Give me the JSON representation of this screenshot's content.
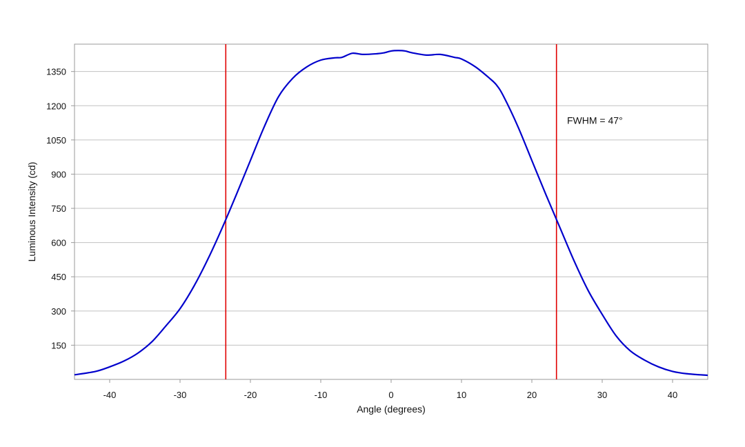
{
  "chart_data": {
    "type": "line",
    "title": "",
    "xlabel": "Angle (degrees)",
    "ylabel": "Luminous Intensity (cd)",
    "xlim": [
      -45,
      45
    ],
    "ylim": [
      0,
      1470
    ],
    "x_ticks": [
      -40,
      -30,
      -20,
      -10,
      0,
      10,
      20,
      30,
      40
    ],
    "y_ticks": [
      150,
      300,
      450,
      600,
      750,
      900,
      1050,
      1200,
      1350
    ],
    "grid": "horizontal",
    "series": [
      {
        "color": "#0000cc",
        "x": [
          -45,
          -42,
          -40,
          -38,
          -36,
          -34,
          -32,
          -30,
          -28,
          -26,
          -24,
          -22,
          -20,
          -18,
          -16,
          -14,
          -12,
          -10,
          -8,
          -7,
          -5.5,
          -4,
          -2,
          -1,
          0,
          1,
          2,
          3,
          5,
          7,
          9,
          10,
          12,
          14,
          15,
          16,
          18,
          20,
          22,
          24,
          26,
          28,
          30,
          32,
          34,
          36,
          38,
          40,
          42,
          45
        ],
        "y": [
          20,
          35,
          55,
          80,
          115,
          165,
          235,
          310,
          410,
          530,
          665,
          810,
          960,
          1110,
          1240,
          1320,
          1370,
          1400,
          1410,
          1412,
          1430,
          1425,
          1428,
          1432,
          1440,
          1442,
          1440,
          1432,
          1422,
          1425,
          1412,
          1405,
          1370,
          1320,
          1290,
          1240,
          1110,
          960,
          810,
          665,
          520,
          390,
          285,
          190,
          125,
          85,
          55,
          35,
          25,
          18
        ]
      }
    ],
    "vlines": [
      {
        "x": -23.5,
        "color": "#e00000"
      },
      {
        "x": 23.5,
        "color": "#e00000"
      }
    ],
    "annotations": [
      {
        "text": "FWHM = 47°",
        "x": 25,
        "y": 1120
      }
    ],
    "colors": {
      "plot_border": "#999999",
      "grid": "#c0c0c0"
    }
  }
}
